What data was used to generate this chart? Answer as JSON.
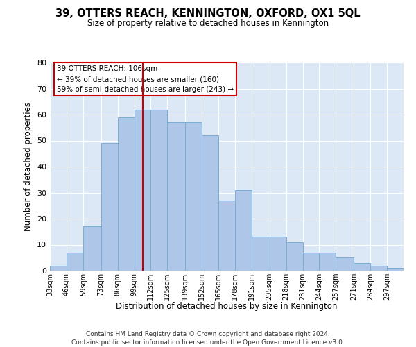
{
  "title": "39, OTTERS REACH, KENNINGTON, OXFORD, OX1 5QL",
  "subtitle": "Size of property relative to detached houses in Kennington",
  "xlabel": "Distribution of detached houses by size in Kennington",
  "ylabel": "Number of detached properties",
  "categories": [
    "33sqm",
    "46sqm",
    "59sqm",
    "73sqm",
    "86sqm",
    "99sqm",
    "112sqm",
    "125sqm",
    "139sqm",
    "152sqm",
    "165sqm",
    "178sqm",
    "191sqm",
    "205sqm",
    "218sqm",
    "231sqm",
    "244sqm",
    "257sqm",
    "271sqm",
    "284sqm",
    "297sqm"
  ],
  "values": [
    2,
    7,
    17,
    49,
    59,
    62,
    62,
    57,
    57,
    52,
    27,
    31,
    13,
    13,
    11,
    7,
    7,
    5,
    3,
    2,
    1
  ],
  "bar_color": "#aec6e8",
  "bar_edge_color": "#7aadd4",
  "bin_edges": [
    33,
    46,
    59,
    73,
    86,
    99,
    112,
    125,
    139,
    152,
    165,
    178,
    191,
    205,
    218,
    231,
    244,
    257,
    271,
    284,
    297,
    310
  ],
  "vline_color": "#cc0000",
  "vline_x": 106,
  "annotation_title": "39 OTTERS REACH: 106sqm",
  "annotation_line1": "← 39% of detached houses are smaller (160)",
  "annotation_line2": "59% of semi-detached houses are larger (243) →",
  "annotation_box_color": "#ffffff",
  "annotation_box_edge": "#cc0000",
  "ylim": [
    0,
    80
  ],
  "yticks": [
    0,
    10,
    20,
    30,
    40,
    50,
    60,
    70,
    80
  ],
  "background_color": "#dce8f5",
  "footer1": "Contains HM Land Registry data © Crown copyright and database right 2024.",
  "footer2": "Contains public sector information licensed under the Open Government Licence v3.0."
}
